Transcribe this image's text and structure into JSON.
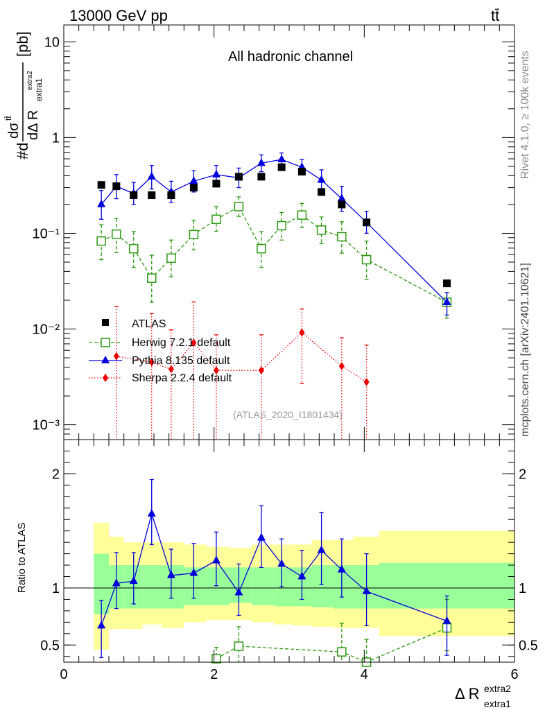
{
  "header": {
    "energy": "13000 GeV pp",
    "process": "tt̄"
  },
  "side_labels": {
    "rivet": "Rivet 4.1.0, ≥ 100k events",
    "mcplots": "mcplots.cern.ch [arXiv:2401.10621]"
  },
  "colors": {
    "atlas": "#000000",
    "herwig": "#2a9a10",
    "pythia": "#0000dd",
    "sherpa": "#ee0000",
    "band_inner": "#99ff99",
    "band_outer": "#ffff99"
  },
  "chart_data": [
    {
      "type": "scatter",
      "panel": "main",
      "title": "All hadronic channel",
      "analysis_tag": "(ATLAS_2020_I1801434)",
      "ylabel": "#dσ^tt̄ / dΔR^extra2_extra1 [pb]",
      "ylabel_parts": {
        "num": "dσ",
        "num_sup": "tt̄",
        "den": "dΔ R",
        "den_sub": "extra1",
        "den_sup": "extra2",
        "prefix": "#d",
        "unit": "[pb]"
      },
      "yscale": "log",
      "ylim": [
        0.0007,
        15
      ],
      "xlim": [
        0,
        6
      ],
      "y_ticks": [
        {
          "value": 0.001,
          "label": "10⁻³"
        },
        {
          "value": 0.01,
          "label": "10⁻²"
        },
        {
          "value": 0.1,
          "label": "10⁻¹"
        },
        {
          "value": 1,
          "label": "1"
        },
        {
          "value": 10,
          "label": "10"
        }
      ],
      "legend_position": "lower-left",
      "series": [
        {
          "name": "ATLAS",
          "style": "data",
          "x": [
            0.5,
            0.7,
            0.93,
            1.17,
            1.43,
            1.73,
            2.03,
            2.33,
            2.63,
            2.9,
            3.17,
            3.43,
            3.7,
            4.03,
            5.1
          ],
          "y": [
            0.32,
            0.31,
            0.25,
            0.25,
            0.25,
            0.3,
            0.33,
            0.39,
            0.39,
            0.49,
            0.44,
            0.27,
            0.2,
            0.13,
            0.03
          ]
        },
        {
          "name": "Herwig 7.2.1 default",
          "style": "dashed-open-square",
          "x": [
            0.5,
            0.7,
            0.93,
            1.17,
            1.43,
            1.73,
            2.03,
            2.33,
            2.63,
            2.9,
            3.17,
            3.43,
            3.7,
            4.03,
            5.1
          ],
          "y": [
            0.083,
            0.098,
            0.069,
            0.034,
            0.055,
            0.097,
            0.14,
            0.19,
            0.069,
            0.12,
            0.155,
            0.108,
            0.092,
            0.053,
            0.019
          ],
          "err_up": [
            0.04,
            0.045,
            0.035,
            0.025,
            0.03,
            0.04,
            0.05,
            0.05,
            0.035,
            0.045,
            0.05,
            0.04,
            0.04,
            0.03,
            0.005
          ],
          "err_down": [
            0.03,
            0.035,
            0.025,
            0.015,
            0.02,
            0.03,
            0.035,
            0.04,
            0.025,
            0.035,
            0.04,
            0.03,
            0.03,
            0.02,
            0.006
          ]
        },
        {
          "name": "Pythia 8.135 default",
          "style": "solid-triangle",
          "x": [
            0.5,
            0.7,
            0.93,
            1.17,
            1.43,
            1.73,
            2.03,
            2.33,
            2.63,
            2.9,
            3.17,
            3.43,
            3.7,
            4.03,
            5.1
          ],
          "y": [
            0.2,
            0.31,
            0.26,
            0.39,
            0.27,
            0.35,
            0.41,
            0.38,
            0.54,
            0.59,
            0.49,
            0.36,
            0.23,
            0.13,
            0.019
          ],
          "err_up": [
            0.08,
            0.1,
            0.08,
            0.12,
            0.08,
            0.1,
            0.1,
            0.1,
            0.12,
            0.1,
            0.1,
            0.1,
            0.08,
            0.04,
            0.005
          ],
          "err_down": [
            0.06,
            0.08,
            0.06,
            0.1,
            0.06,
            0.08,
            0.08,
            0.08,
            0.1,
            0.08,
            0.08,
            0.08,
            0.06,
            0.03,
            0.005
          ]
        },
        {
          "name": "Sherpa 2.2.4 default",
          "style": "dotted-diamond",
          "x": [
            0.7,
            1.17,
            1.43,
            1.73,
            2.03,
            2.63,
            3.17,
            3.7,
            4.03
          ],
          "y": [
            0.0052,
            0.0045,
            0.0038,
            0.0072,
            0.0037,
            0.0037,
            0.0092,
            0.0041,
            0.0028
          ],
          "err_up": [
            0.012,
            0.01,
            0.006,
            0.012,
            0.005,
            0.005,
            0.007,
            0.004,
            0.004
          ],
          "err_down": [
            0.005,
            0.0044,
            0.0037,
            0.0071,
            0.0036,
            0.0036,
            0.0065,
            0.004,
            0.0027
          ]
        }
      ]
    },
    {
      "type": "scatter",
      "panel": "ratio",
      "ylabel": "Ratio to ATLAS",
      "xlabel": "Δ R^extra2_extra1",
      "xlabel_parts": {
        "base": "Δ R",
        "sup": "extra2",
        "sub": "extra1"
      },
      "ylim": [
        0.35,
        2.3
      ],
      "xlim": [
        0,
        6
      ],
      "y_ticks": [
        {
          "value": 0.5,
          "label": "0.5"
        },
        {
          "value": 1,
          "label": "1"
        },
        {
          "value": 2,
          "label": "2"
        }
      ],
      "x_ticks": [
        {
          "value": 0,
          "label": "0"
        },
        {
          "value": 2,
          "label": "2"
        },
        {
          "value": 4,
          "label": "4"
        },
        {
          "value": 6,
          "label": "6"
        }
      ],
      "reference_line": 1,
      "uncertainty_bands": {
        "bins": [
          [
            0.4,
            0.6
          ],
          [
            0.6,
            0.8
          ],
          [
            0.8,
            1.05
          ],
          [
            1.05,
            1.3
          ],
          [
            1.3,
            1.6
          ],
          [
            1.6,
            1.9
          ],
          [
            1.9,
            2.2
          ],
          [
            2.2,
            2.5
          ],
          [
            2.5,
            2.8
          ],
          [
            2.8,
            3.05
          ],
          [
            3.05,
            3.3
          ],
          [
            3.3,
            3.6
          ],
          [
            3.6,
            3.85
          ],
          [
            3.85,
            4.2
          ],
          [
            4.2,
            6.0
          ]
        ],
        "inner_lo": [
          0.77,
          0.82,
          0.82,
          0.82,
          0.82,
          0.85,
          0.85,
          0.87,
          0.85,
          0.84,
          0.84,
          0.83,
          0.82,
          0.82,
          0.82
        ],
        "inner_hi": [
          1.3,
          1.2,
          1.2,
          1.2,
          1.2,
          1.18,
          1.18,
          1.18,
          1.18,
          1.18,
          1.18,
          1.2,
          1.2,
          1.2,
          1.22
        ],
        "outer_lo": [
          0.46,
          0.64,
          0.64,
          0.68,
          0.65,
          0.7,
          0.72,
          0.72,
          0.7,
          0.68,
          0.67,
          0.66,
          0.65,
          0.65,
          0.58
        ],
        "outer_hi": [
          1.57,
          1.45,
          1.4,
          1.4,
          1.4,
          1.38,
          1.36,
          1.35,
          1.38,
          1.38,
          1.38,
          1.42,
          1.42,
          1.45,
          1.5
        ]
      },
      "series": [
        {
          "name": "Pythia 8.135 default",
          "x": [
            0.5,
            0.7,
            0.93,
            1.17,
            1.43,
            1.73,
            2.03,
            2.33,
            2.63,
            2.9,
            3.17,
            3.43,
            3.7,
            4.03,
            5.1
          ],
          "y": [
            0.67,
            1.04,
            1.06,
            1.65,
            1.11,
            1.13,
            1.24,
            0.96,
            1.44,
            1.21,
            1.1,
            1.33,
            1.16,
            0.97,
            0.71
          ],
          "err_up": [
            0.22,
            0.27,
            0.25,
            0.3,
            0.23,
            0.26,
            0.25,
            0.25,
            0.28,
            0.22,
            0.23,
            0.33,
            0.27,
            0.33,
            0.22
          ],
          "err_down": [
            0.28,
            0.22,
            0.2,
            0.27,
            0.2,
            0.22,
            0.22,
            0.2,
            0.26,
            0.2,
            0.2,
            0.3,
            0.24,
            0.3,
            0.3
          ]
        },
        {
          "name": "Herwig 7.2.1 default",
          "x": [
            2.03,
            2.33,
            3.7,
            4.03,
            5.1
          ],
          "y": [
            0.38,
            0.49,
            0.44,
            0.35,
            0.65
          ],
          "err_up": [
            0.1,
            0.17,
            0.25,
            0.2,
            0.25
          ],
          "err_down": [
            0.05,
            0.15,
            0.1,
            0.05,
            0.2
          ]
        }
      ]
    }
  ]
}
